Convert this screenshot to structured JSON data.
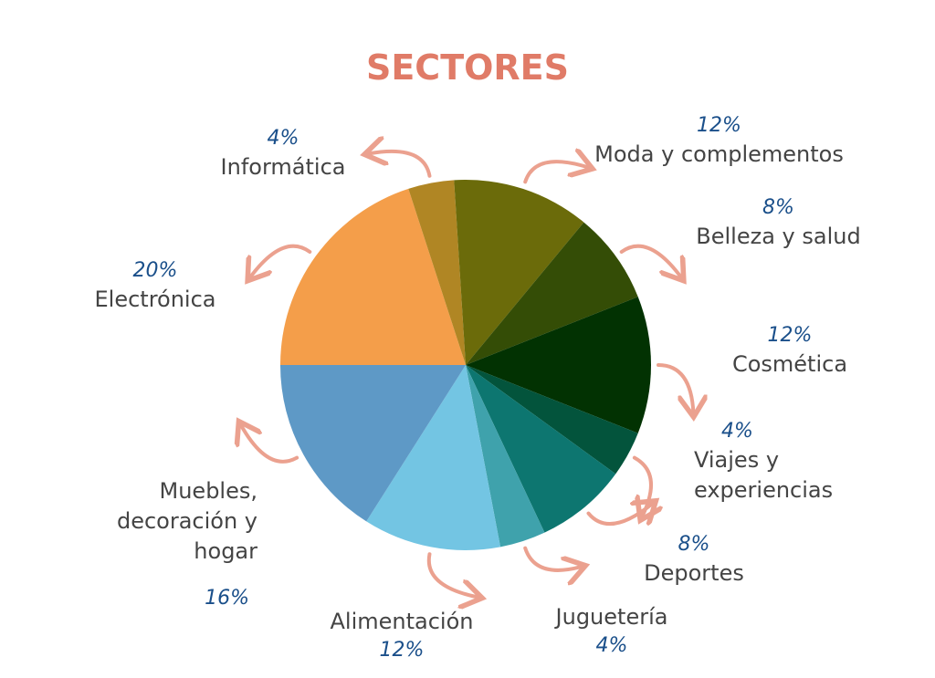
{
  "chart_data": {
    "type": "pie",
    "title": "SECTORES",
    "categories": [
      "Electrónica",
      "Informática",
      "Moda y complementos",
      "Belleza y salud",
      "Cosmética",
      "Viajes y experiencias",
      "Deportes",
      "Juguetería",
      "Alimentación",
      "Muebles, decoración y hogar"
    ],
    "values": [
      20,
      4,
      12,
      8,
      12,
      4,
      8,
      4,
      12,
      16
    ],
    "value_labels": [
      "20%",
      "4%",
      "12%",
      "8%",
      "12%",
      "4%",
      "8%",
      "4%",
      "12%",
      "16%"
    ],
    "colors": [
      "#f49e4a",
      "#b08624",
      "#6b6b0a",
      "#344d06",
      "#023202",
      "#03543c",
      "#0d7670",
      "#3fa2ac",
      "#73c5e3",
      "#5e99c6"
    ]
  }
}
